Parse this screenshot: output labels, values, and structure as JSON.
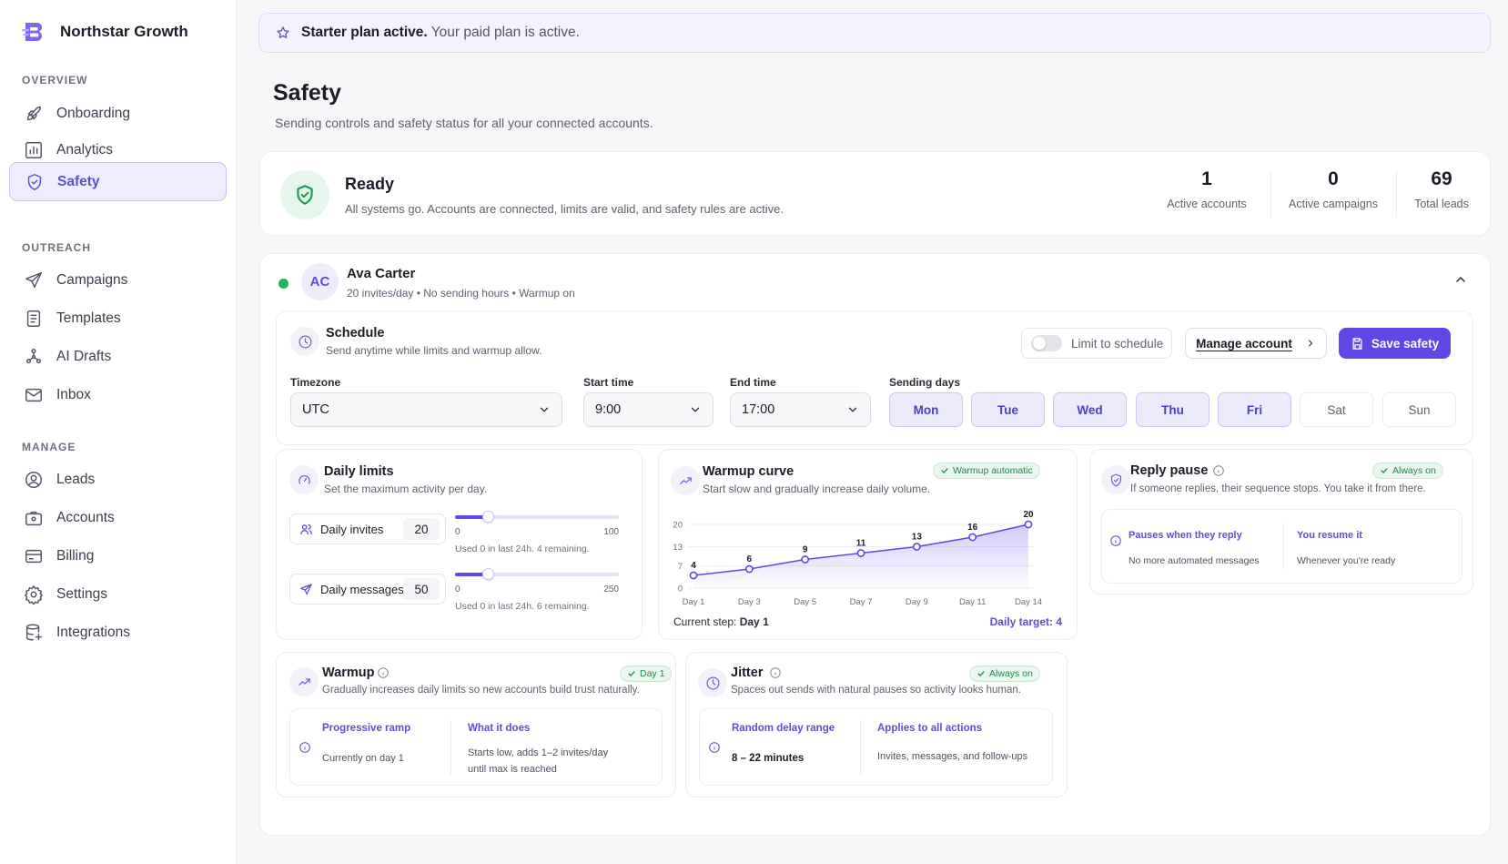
{
  "brand": {
    "name": "Northstar Growth"
  },
  "sidebar": {
    "sections": [
      {
        "label": "OVERVIEW",
        "items": [
          {
            "label": "Onboarding"
          },
          {
            "label": "Analytics"
          },
          {
            "label": "Safety"
          }
        ]
      },
      {
        "label": "OUTREACH",
        "items": [
          {
            "label": "Campaigns"
          },
          {
            "label": "Templates"
          },
          {
            "label": "AI Drafts"
          },
          {
            "label": "Inbox"
          }
        ]
      },
      {
        "label": "MANAGE",
        "items": [
          {
            "label": "Leads"
          },
          {
            "label": "Accounts"
          },
          {
            "label": "Billing"
          },
          {
            "label": "Settings"
          },
          {
            "label": "Integrations"
          }
        ]
      }
    ],
    "active": "Safety"
  },
  "banner": {
    "bold": "Starter plan active.",
    "text": "Your paid plan is active."
  },
  "page": {
    "title": "Safety",
    "subtitle": "Sending controls and safety status for all your connected accounts."
  },
  "status": {
    "title": "Ready",
    "description": "All systems go. Accounts are connected, limits are valid, and safety rules are active.",
    "stats": [
      {
        "value": "1",
        "label": "Active accounts"
      },
      {
        "value": "0",
        "label": "Active campaigns"
      },
      {
        "value": "69",
        "label": "Total leads"
      }
    ]
  },
  "account": {
    "initials": "AC",
    "name": "Ava Carter",
    "meta": "20 invites/day • No sending hours • Warmup on",
    "status_color": "#22b35e"
  },
  "schedule": {
    "title": "Schedule",
    "subtitle": "Send anytime while limits and warmup allow.",
    "limit_toggle_label": "Limit to schedule",
    "limit_toggle_on": false,
    "manage_label": "Manage account",
    "save_label": "Save safety",
    "timezone_label": "Timezone",
    "timezone_value": "UTC",
    "start_label": "Start time",
    "start_value": "9:00",
    "end_label": "End time",
    "end_value": "17:00",
    "days_label": "Sending days",
    "days": [
      {
        "label": "Mon",
        "on": true
      },
      {
        "label": "Tue",
        "on": true
      },
      {
        "label": "Wed",
        "on": true
      },
      {
        "label": "Thu",
        "on": true
      },
      {
        "label": "Fri",
        "on": true
      },
      {
        "label": "Sat",
        "on": false
      },
      {
        "label": "Sun",
        "on": false
      }
    ]
  },
  "limits": {
    "title": "Daily limits",
    "subtitle": "Set the maximum activity per day.",
    "invites": {
      "label": "Daily invites",
      "value": "20",
      "min": "0",
      "max": "100",
      "fraction": 0.2,
      "note": "Used 0 in last 24h. 4 remaining."
    },
    "messages": {
      "label": "Daily messages",
      "value": "50",
      "min": "0",
      "max": "250",
      "fraction": 0.2,
      "note": "Used 0 in last 24h. 6 remaining."
    }
  },
  "warmcurve": {
    "title": "Warmup curve",
    "subtitle": "Start slow and gradually increase daily volume.",
    "badge": "Warmup automatic",
    "current_label": "Current step:",
    "current_value": "Day 1",
    "target": "Daily target: 4"
  },
  "chart_data": {
    "type": "area",
    "x": [
      "Day 1",
      "Day 3",
      "Day 5",
      "Day 7",
      "Day 9",
      "Day 11",
      "Day 14"
    ],
    "values": [
      4,
      6,
      9,
      11,
      13,
      16,
      20
    ],
    "yticks": [
      "20",
      "13",
      "7",
      "0"
    ],
    "ylim": [
      0,
      20
    ],
    "color": "#6347e6"
  },
  "reply": {
    "title": "Reply pause",
    "badge": "Always on",
    "subtitle": "If someone replies, their sequence stops. You take it from there.",
    "col1_title": "Pauses when they reply",
    "col1_text": "No more automated messages",
    "col2_title": "You resume it",
    "col2_text": "Whenever you're ready"
  },
  "warmup": {
    "title": "Warmup",
    "badge": "Day 1",
    "subtitle": "Gradually increases daily limits so new accounts build trust naturally.",
    "col1_title": "Progressive ramp",
    "col1_text": "Currently on day 1",
    "col2_title": "What it does",
    "col2_text1": "Starts low, adds 1–2 invites/day",
    "col2_text2": "until max is reached"
  },
  "jitter": {
    "title": "Jitter",
    "badge": "Always on",
    "subtitle": "Spaces out sends with natural pauses so activity looks human.",
    "col1_title": "Random delay range",
    "col1_text": "8 – 22 minutes",
    "col2_title": "Applies to all actions",
    "col2_text": "Invites, messages, and follow-ups"
  },
  "colors": {
    "accent": "#6347e6",
    "success": "#22b35e"
  }
}
